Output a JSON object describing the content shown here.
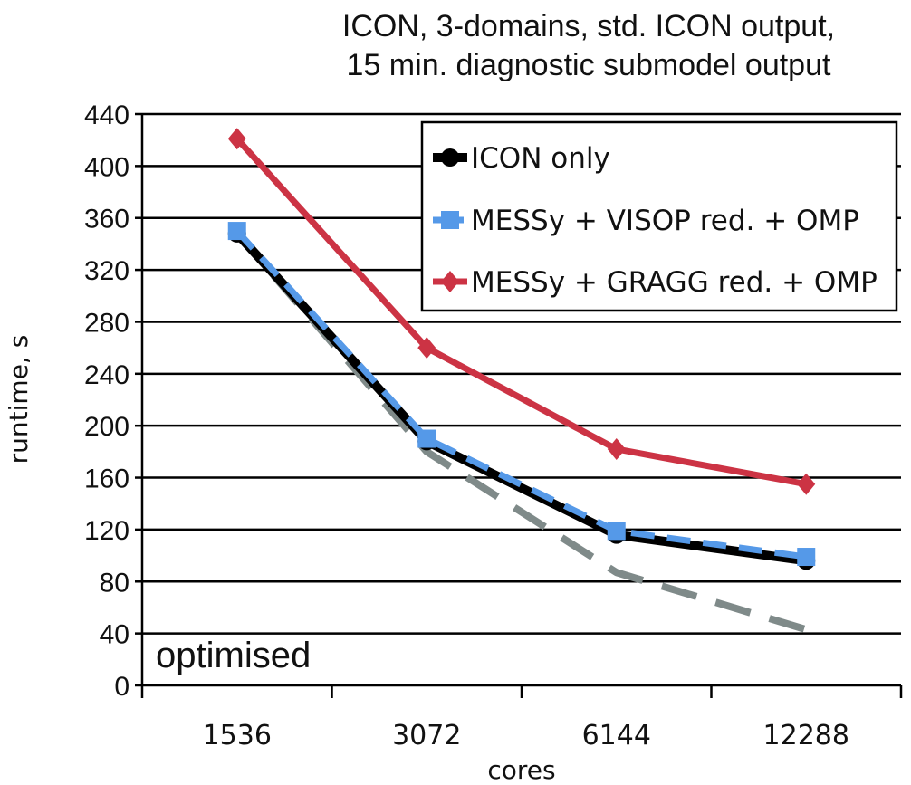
{
  "chart_data": {
    "type": "line",
    "title_lines": [
      "ICON, 3-domains, std. ICON output,",
      "15 min. diagnostic submodel output"
    ],
    "xlabel": "cores",
    "ylabel": "runtime, s",
    "categories": [
      "1536",
      "3072",
      "6144",
      "12288"
    ],
    "ylim": [
      0,
      440
    ],
    "yticks": [
      "0",
      "40",
      "80",
      "120",
      "160",
      "200",
      "240",
      "280",
      "320",
      "360",
      "400",
      "440"
    ],
    "grid": "horizontal",
    "legend_position": "top-right",
    "annotation": "optimised",
    "series": [
      {
        "name": "ICON only",
        "values": [
          348,
          188,
          116,
          96
        ],
        "color": "#000000",
        "marker": "circle",
        "line": "solid"
      },
      {
        "name": "MESSy + VISOP red. + OMP",
        "values": [
          350,
          190,
          119,
          99
        ],
        "color": "#5599e8",
        "marker": "square",
        "line": "dashed"
      },
      {
        "name": "MESSy + GRAGG red. + OMP",
        "values": [
          421,
          260,
          182,
          155
        ],
        "color": "#cc3344",
        "marker": "diamond",
        "line": "solid"
      },
      {
        "name": "",
        "values": [
          348,
          180,
          87,
          43
        ],
        "color": "#7f8a89",
        "marker": "none",
        "line": "dashed"
      }
    ]
  }
}
